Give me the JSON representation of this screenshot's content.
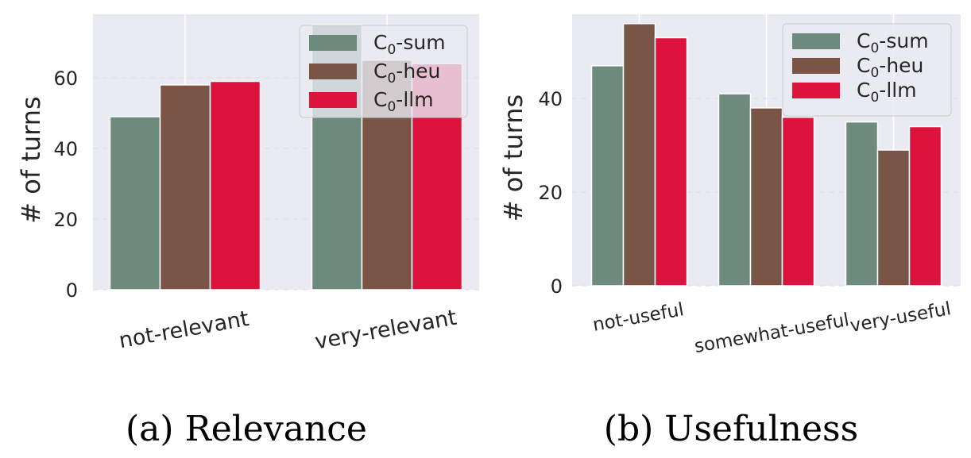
{
  "colors": {
    "background": "#eaeaf2",
    "grid": "#ffffff",
    "sum": "#6c8b7c",
    "heu": "#7a5444",
    "llm": "#dc143c"
  },
  "legend": [
    {
      "key": "sum",
      "prefix": "C",
      "sub": "0",
      "suffix": "-sum"
    },
    {
      "key": "heu",
      "prefix": "C",
      "sub": "0",
      "suffix": "-heu"
    },
    {
      "key": "llm",
      "prefix": "C",
      "sub": "0",
      "suffix": "-llm"
    }
  ],
  "chart_data": [
    {
      "type": "bar",
      "caption": "(a) Relevance",
      "ylabel": "# of turns",
      "ylim": [
        0,
        78
      ],
      "yticks": [
        0,
        20,
        40,
        60
      ],
      "categories": [
        "not-relevant",
        "very-relevant"
      ],
      "legend_position": "top-right",
      "series": [
        {
          "name": "C0-sum",
          "key": "sum",
          "values": [
            49,
            75
          ]
        },
        {
          "name": "C0-heu",
          "key": "heu",
          "values": [
            58,
            65
          ]
        },
        {
          "name": "C0-llm",
          "key": "llm",
          "values": [
            59,
            64
          ]
        }
      ]
    },
    {
      "type": "bar",
      "caption": "(b) Usefulness",
      "ylabel": "# of turns",
      "ylim": [
        0,
        58
      ],
      "yticks": [
        0,
        20,
        40
      ],
      "categories": [
        "not-useful",
        "somewhat-useful",
        "very-useful"
      ],
      "legend_position": "top-right",
      "series": [
        {
          "name": "C0-sum",
          "key": "sum",
          "values": [
            47,
            41,
            35
          ]
        },
        {
          "name": "C0-heu",
          "key": "heu",
          "values": [
            56,
            38,
            29
          ]
        },
        {
          "name": "C0-llm",
          "key": "llm",
          "values": [
            53,
            36,
            34
          ]
        }
      ]
    }
  ]
}
